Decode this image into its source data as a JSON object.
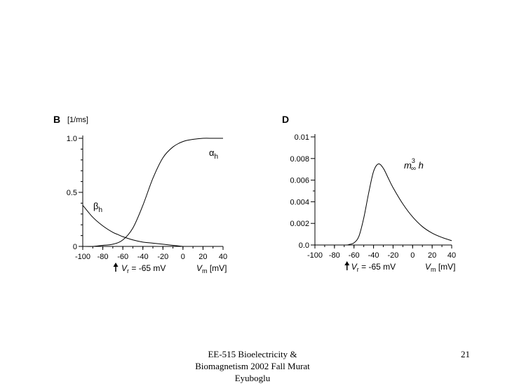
{
  "footer": {
    "line1": "EE-515 Bioelectricity &",
    "line2": "Biomagnetism 2002 Fall Murat",
    "line3": "Eyuboglu",
    "page_number": "21"
  },
  "chart_data": [
    {
      "type": "line",
      "panel_label": "B",
      "ylabel": "[1/ms]",
      "xlabel": {
        "var": "V",
        "sub": "m",
        "unit": "[mV]"
      },
      "marker": {
        "var": "V",
        "sub": "r",
        "text": "= -65 mV",
        "x": -65
      },
      "xlim": [
        -100,
        40
      ],
      "ylim": [
        0,
        1.0
      ],
      "x_ticks": [
        -100,
        -80,
        -60,
        -40,
        -20,
        0,
        20,
        40
      ],
      "x_tick_labels": [
        "-100",
        "-80",
        "-60",
        "-40",
        "-20",
        "0",
        "20",
        "40"
      ],
      "y_ticks": [
        0,
        0.5,
        1.0
      ],
      "y_tick_labels": [
        "0",
        "0.5",
        "1.0"
      ],
      "series": [
        {
          "name": "αh",
          "greek": "α",
          "sub": "h",
          "x": [
            -100,
            -90,
            -80,
            -70,
            -65,
            -60,
            -50,
            -40,
            -30,
            -20,
            -10,
            0
          ],
          "y": [
            0.38,
            0.27,
            0.19,
            0.13,
            0.11,
            0.09,
            0.06,
            0.04,
            0.03,
            0.02,
            0.01,
            0.0
          ]
        },
        {
          "name": "βh",
          "greek": "β",
          "sub": "h",
          "x": [
            -100,
            -90,
            -80,
            -70,
            -60,
            -50,
            -40,
            -30,
            -20,
            -10,
            0,
            10,
            20,
            30,
            40
          ],
          "y": [
            0.0,
            0.0,
            0.01,
            0.02,
            0.06,
            0.17,
            0.38,
            0.63,
            0.82,
            0.92,
            0.97,
            0.99,
            1.0,
            1.0,
            1.0
          ]
        }
      ]
    },
    {
      "type": "line",
      "panel_label": "D",
      "xlabel": {
        "var": "V",
        "sub": "m",
        "unit": "[mV]"
      },
      "marker": {
        "var": "V",
        "sub": "r",
        "text": "= -65 mV",
        "x": -65
      },
      "xlim": [
        -100,
        40
      ],
      "ylim": [
        0,
        0.01
      ],
      "x_ticks": [
        -100,
        -80,
        -60,
        -40,
        -20,
        0,
        20,
        40
      ],
      "x_tick_labels": [
        "-100",
        "-80",
        "-60",
        "-40",
        "-20",
        "0",
        "20",
        "40"
      ],
      "y_ticks": [
        0,
        0.002,
        0.004,
        0.006,
        0.008,
        0.01
      ],
      "y_tick_labels": [
        "0.0",
        "0.002",
        "0.004",
        "0.006",
        "0.008",
        "0.01"
      ],
      "series": [
        {
          "name": "m∞3h",
          "base": "m",
          "sub": "∞",
          "sup": "3",
          "suffix": "h",
          "x": [
            -100,
            -70,
            -65,
            -60,
            -55,
            -50,
            -45,
            -40,
            -35,
            -30,
            -25,
            -20,
            -10,
            0,
            10,
            20,
            30,
            40
          ],
          "y": [
            0.0,
            0.0,
            5e-05,
            0.0002,
            0.0008,
            0.0025,
            0.0048,
            0.0068,
            0.0075,
            0.0071,
            0.0062,
            0.0053,
            0.0038,
            0.0026,
            0.0017,
            0.0011,
            0.0007,
            0.0004
          ]
        }
      ]
    }
  ]
}
